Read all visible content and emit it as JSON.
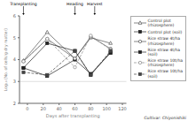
{
  "chart_data": {
    "type": "line",
    "x_label": "Days after transplanting",
    "y_label": "Log₁₀ (No. of cells/g dry matter)",
    "xlim": [
      -10,
      125
    ],
    "ylim": [
      2,
      6
    ],
    "xticks": [
      0,
      20,
      40,
      60,
      80,
      100,
      120
    ],
    "yticks": [
      2,
      3,
      4,
      5,
      6
    ],
    "x": [
      -5,
      25,
      60,
      80,
      105
    ],
    "series": [
      {
        "name": "Control plot\n(rhizosphere)",
        "color": "#555555",
        "marker": "open_triangle",
        "line_style": "solid",
        "values": [
          3.95,
          5.25,
          4.05,
          5.0,
          4.75
        ]
      },
      {
        "name": "Control plot (soil)",
        "color": "#222222",
        "marker": "square",
        "line_style": "solid",
        "values": [
          3.62,
          3.25,
          4.0,
          3.35,
          4.3
        ]
      },
      {
        "name": "Rice straw 4t/ha\n(rhizosphere)",
        "color": "#555555",
        "marker": "open_circle",
        "line_style": "solid",
        "values": [
          3.92,
          4.95,
          4.05,
          5.05,
          4.5
        ]
      },
      {
        "name": "Rice straw 4t/ha\n(soil)",
        "color": "#222222",
        "marker": "square",
        "line_style": "solid",
        "values": [
          3.62,
          4.75,
          4.4,
          3.3,
          4.35
        ]
      },
      {
        "name": "Rice straw 10t/ha\n(rhizosphere)",
        "color": "#888888",
        "marker": "open_circle",
        "line_style": "dashed",
        "values": [
          3.92,
          4.95,
          3.65,
          5.1,
          4.45
        ]
      },
      {
        "name": "Rice straw 10t/ha\n(soil)",
        "color": "#444444",
        "marker": "square",
        "line_style": "dashed",
        "values": [
          3.42,
          3.3,
          4.4,
          3.3,
          4.4
        ]
      }
    ],
    "hlines": [
      3
    ],
    "annotations": [
      {
        "text": "Transplanting",
        "x": -5
      },
      {
        "text": "Heading",
        "x": 60
      },
      {
        "text": "Harvest",
        "x": 85
      }
    ],
    "subtitle": "Cultivar: Chiyonishiki",
    "legend": "right"
  }
}
